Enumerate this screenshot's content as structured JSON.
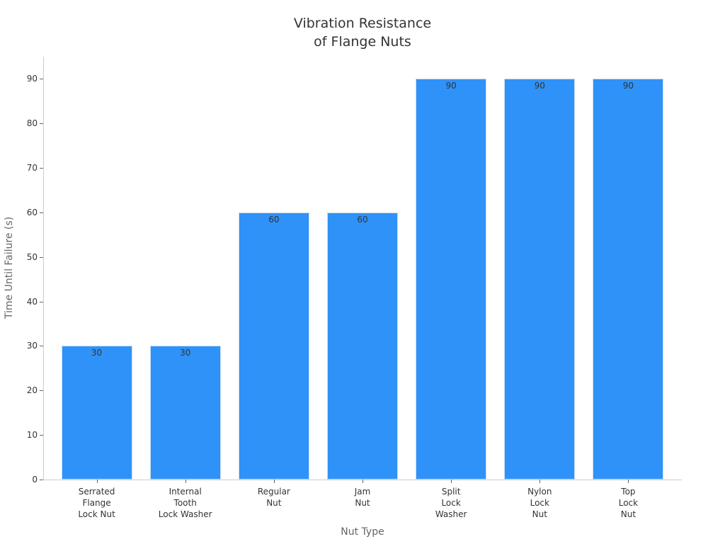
{
  "chart_data": {
    "type": "bar",
    "title_lines": [
      "Vibration Resistance",
      "of Flange Nuts"
    ],
    "xlabel": "Nut Type",
    "ylabel": "Time Until Failure (s)",
    "ylim": [
      0,
      95
    ],
    "yticks": [
      0,
      10,
      20,
      30,
      40,
      50,
      60,
      70,
      80,
      90
    ],
    "grid": false,
    "categories": [
      "Serrated\nFlange\nLock Nut",
      "Internal\nTooth\nLock Washer",
      "Regular\nNut",
      "Jam\nNut",
      "Split\nLock\nWasher",
      "Nylon\nLock\nNut",
      "Top\nLock\nNut"
    ],
    "values": [
      30,
      30,
      60,
      60,
      90,
      90,
      90
    ],
    "colors": {
      "bar": "#2f92f8",
      "bar_edge": "#c8def4",
      "axis": "#cccccc"
    }
  }
}
